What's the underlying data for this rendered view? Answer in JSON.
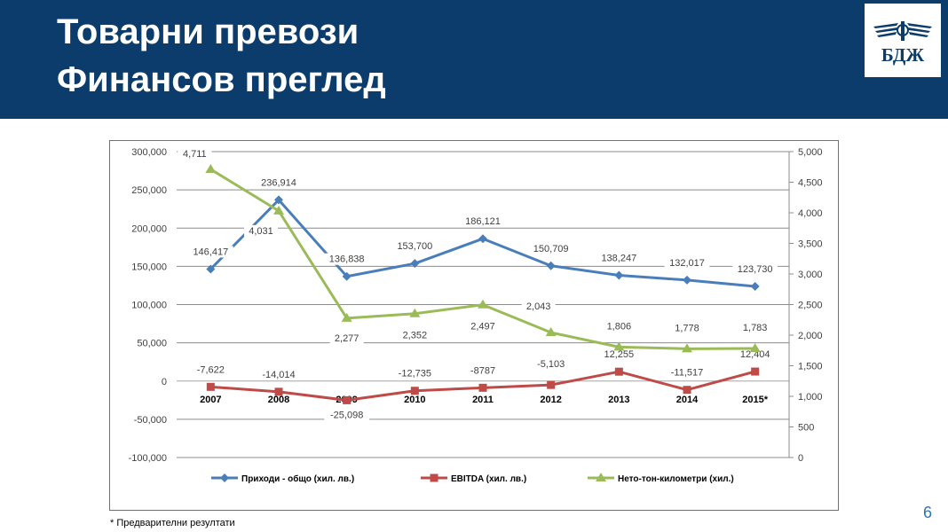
{
  "header": {
    "title_line1": "Товарни превози",
    "title_line2": "Финансов преглед",
    "background": "#0b3c6b"
  },
  "logo": {
    "text": "БДЖ",
    "icon": "winged-wheel-icon"
  },
  "footnote": "* Предварителни резултати",
  "page_number": "6",
  "chart_data": {
    "type": "line",
    "categories": [
      "2007",
      "2008",
      "2009",
      "2010",
      "2011",
      "2012",
      "2013",
      "2014",
      "2015*"
    ],
    "y_left": {
      "range": [
        -100000,
        300000
      ],
      "ticks": [
        -100000,
        -50000,
        0,
        50000,
        100000,
        150000,
        200000,
        250000,
        300000
      ],
      "tick_labels": [
        "-100,000",
        "-50,000",
        "0",
        "50,000",
        "100,000",
        "150,000",
        "200,000",
        "250,000",
        "300,000"
      ]
    },
    "y_right": {
      "range": [
        0,
        5000
      ],
      "ticks": [
        0,
        500,
        1000,
        1500,
        2000,
        2500,
        3000,
        3500,
        4000,
        4500,
        5000
      ],
      "tick_labels": [
        "0",
        "500",
        "1,000",
        "1,500",
        "2,000",
        "2,500",
        "3,000",
        "3,500",
        "4,000",
        "4,500",
        "5,000"
      ]
    },
    "grid": "horizontal",
    "legend_position": "bottom",
    "series": [
      {
        "name": "Приходи - общо  (хил. лв.)",
        "axis": "left",
        "color": "#4a7ebb",
        "marker": "diamond",
        "values": [
          146417,
          236914,
          136838,
          153700,
          186121,
          150709,
          138247,
          132017,
          123730
        ],
        "labels": [
          "146,417",
          "236,914",
          "136,838",
          "153,700",
          "186,121",
          "150,709",
          "138,247",
          "132,017",
          "123,730"
        ]
      },
      {
        "name": "EBITDA (хил. лв.)",
        "axis": "left",
        "color": "#be4b48",
        "marker": "square",
        "values": [
          -7622,
          -14014,
          -25098,
          -12735,
          -8787,
          -5103,
          12255,
          -11517,
          12404
        ],
        "labels": [
          "-7,622",
          "-14,014",
          "-25,098",
          "-12,735",
          "-8787",
          "-5,103",
          "12,255",
          "-11,517",
          "12,404"
        ]
      },
      {
        "name": "Нето-тон-километри (хил.)",
        "axis": "right",
        "color": "#9bbb59",
        "marker": "triangle",
        "values": [
          4711,
          4031,
          2277,
          2352,
          2497,
          2043,
          1806,
          1778,
          1783
        ],
        "labels": [
          "4,711",
          "4,031",
          "2,277",
          "2,352",
          "2,497",
          "2,043",
          "1,806",
          "1,778",
          "1,783"
        ]
      }
    ]
  }
}
